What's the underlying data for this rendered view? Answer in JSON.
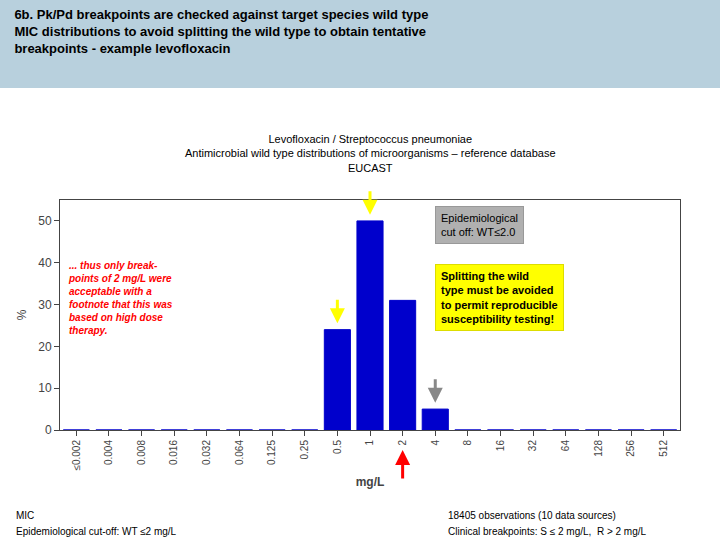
{
  "chart_data": {
    "type": "bar",
    "title": "6b. Pk/Pd breakpoints are checked against target species wild type\nMIC distributions to avoid splitting the wild type to obtain tentative\nbreakpoints - example levofloxacin",
    "header_color": "#b8d0dd",
    "subtitle": "Levofloxacin / Streptococcus pneumoniae\nAntimicrobial wild type distributions of microorganisms – reference database\nEUCAST",
    "xlabel": "mg/L",
    "ylabel": "%",
    "categories": [
      "≤0.002",
      "0.004",
      "0.008",
      "0.016",
      "0.032",
      "0.064",
      "0.125",
      "0.25",
      "0.5",
      "1",
      "2",
      "4",
      "8",
      "16",
      "32",
      "64",
      "128",
      "256",
      "512"
    ],
    "values": [
      0,
      0,
      0,
      0,
      0,
      0,
      0,
      0,
      24,
      50,
      31,
      5,
      0,
      0,
      0,
      0,
      0,
      0,
      0
    ],
    "color": "#0000cc",
    "ylim": [
      0,
      55
    ],
    "yticks": [
      0,
      10,
      20,
      30,
      40,
      50
    ],
    "grid": false,
    "annotations": [
      {
        "text": "... thus only break-\npoints of 2 mg/L were\nacceptable with a\nfootnote that this was\nbased on high dose\ntherapy.",
        "color": "red"
      },
      {
        "text": "Epidemiological\ncut off: WT≤2.0",
        "box_color": "#b0b0b0"
      },
      {
        "text": "Splitting the wild\ntype must be avoided\nto permit reproducible\nsusceptibility testing!",
        "box_color": "#ffff00"
      }
    ],
    "arrows": [
      {
        "category": "0.5",
        "color": "yellow",
        "direction": "down"
      },
      {
        "category": "1",
        "color": "yellow",
        "direction": "down"
      },
      {
        "category": "4",
        "color": "#888888",
        "direction": "down"
      },
      {
        "category": "2",
        "color": "red",
        "direction": "up"
      }
    ],
    "footer": [
      "MIC",
      "Epidemiological cut-off: WT ≤2 mg/L",
      "18405 observations (10 data sources)",
      "Clinical breakpoints: S ≤ 2 mg/L,  R > 2 mg/L"
    ]
  }
}
